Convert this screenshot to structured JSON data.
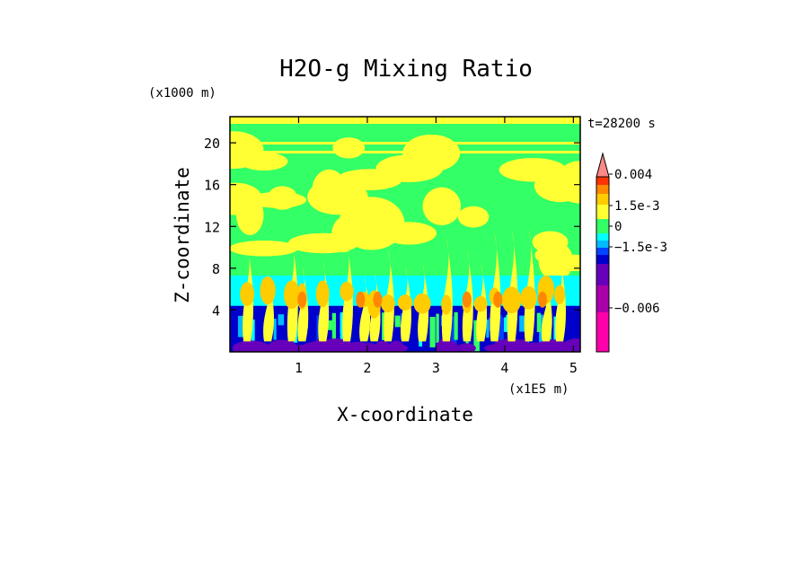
{
  "chart_data": {
    "type": "heatmap",
    "title": "H2O-g Mixing Ratio",
    "xlabel": "X-coordinate",
    "ylabel": "Z-coordinate",
    "x_unit_label": "(x1E5 m)",
    "y_unit_label": "(x1000 m)",
    "time_label": "t=28200 s",
    "xlim": [
      0,
      5.1
    ],
    "ylim": [
      0,
      22.5
    ],
    "x_ticks": [
      1,
      2,
      3,
      4,
      5
    ],
    "x_tick_labels": [
      "1",
      "2",
      "3",
      "4",
      "5"
    ],
    "y_ticks": [
      4,
      8,
      12,
      16,
      20
    ],
    "y_tick_labels": [
      "4",
      "8",
      "12",
      "16",
      "20"
    ],
    "colorbar": {
      "tick_labels": [
        "0.004",
        "1.5e-3",
        "0",
        "−1.5e-3",
        "−0.006"
      ],
      "levels": [
        {
          "color": "#ff00aa"
        },
        {
          "color": "#aa00aa"
        },
        {
          "color": "#6600bb"
        },
        {
          "color": "#0000cc"
        },
        {
          "color": "#0044ff"
        },
        {
          "color": "#00bbff"
        },
        {
          "color": "#00ffff"
        },
        {
          "color": "#33ff66"
        },
        {
          "color": "#ffff33"
        },
        {
          "color": "#ffcc00"
        },
        {
          "color": "#ff8800"
        },
        {
          "color": "#ff3300"
        },
        {
          "color": "#ff8888"
        }
      ]
    }
  }
}
